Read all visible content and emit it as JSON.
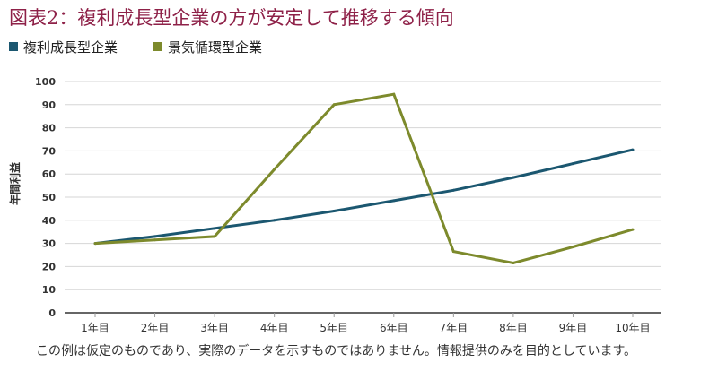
{
  "title": "図表2：複利成長型企業の方が安定して推移する傾向",
  "footnote": "この例は仮定のものであり、実際のデータを示すものではありません。情報提供のみを目的としています。",
  "colors": {
    "title": "#8e2148",
    "series1": "#1b5770",
    "series2": "#7d8a2c",
    "grid": "#d6d6d6",
    "axis": "#333333"
  },
  "chart_data": {
    "type": "line",
    "title": "図表2：複利成長型企業の方が安定して推移する傾向",
    "xlabel": "",
    "ylabel": "年間利益",
    "categories": [
      "1年目",
      "2年目",
      "3年目",
      "4年目",
      "5年目",
      "6年目",
      "7年目",
      "8年目",
      "9年目",
      "10年目"
    ],
    "series": [
      {
        "name": "複利成長型企業",
        "color": "#1b5770",
        "values": [
          30,
          33,
          36.5,
          40,
          44,
          48.5,
          53,
          58.5,
          64.5,
          70.5
        ]
      },
      {
        "name": "景気循環型企業",
        "color": "#7d8a2c",
        "values": [
          30,
          31.5,
          33,
          62,
          90,
          94.5,
          26.5,
          21.5,
          28.5,
          36
        ]
      }
    ],
    "ylim": [
      0,
      100
    ],
    "yticks": [
      0,
      10,
      20,
      30,
      40,
      50,
      60,
      70,
      80,
      90,
      100
    ],
    "grid": true,
    "legend": "top-left"
  }
}
